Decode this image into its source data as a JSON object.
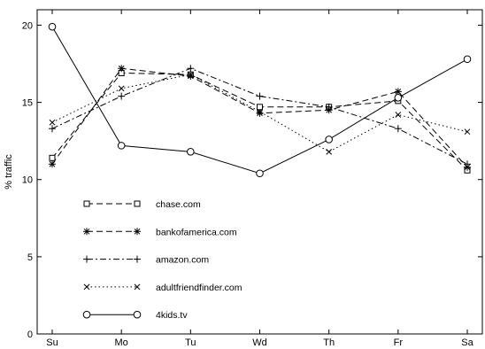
{
  "chart_data": {
    "type": "line",
    "categories": [
      "Su",
      "Mo",
      "Tu",
      "Wd",
      "Th",
      "Fr",
      "Sa"
    ],
    "ylabel": "% traffic",
    "xlabel": "",
    "ylim": [
      0,
      21
    ],
    "yticks": [
      0,
      5,
      10,
      15,
      20
    ],
    "grid": false,
    "legend_position": "bottom-left",
    "series": [
      {
        "name": "chase.com",
        "marker": "square",
        "dash": "dashed",
        "color": "#000000",
        "values": [
          11.4,
          16.9,
          16.8,
          14.7,
          14.7,
          15.1,
          10.6
        ]
      },
      {
        "name": "bankofamerica.com",
        "marker": "asterisk",
        "dash": "dashed",
        "color": "#000000",
        "values": [
          11.0,
          17.2,
          16.7,
          14.3,
          14.5,
          15.7,
          10.8
        ]
      },
      {
        "name": "amazon.com",
        "marker": "plus",
        "dash": "dashdot",
        "color": "#000000",
        "values": [
          13.3,
          15.4,
          17.2,
          15.4,
          14.7,
          13.3,
          11.0
        ]
      },
      {
        "name": "adultfriendfinder.com",
        "marker": "cross",
        "dash": "dotted",
        "color": "#000000",
        "values": [
          13.7,
          15.9,
          16.8,
          14.4,
          11.8,
          14.2,
          13.1
        ]
      },
      {
        "name": "4kids.tv",
        "marker": "circle",
        "dash": "solid",
        "color": "#000000",
        "values": [
          19.9,
          12.2,
          11.8,
          10.4,
          12.6,
          15.3,
          17.8
        ]
      }
    ]
  }
}
